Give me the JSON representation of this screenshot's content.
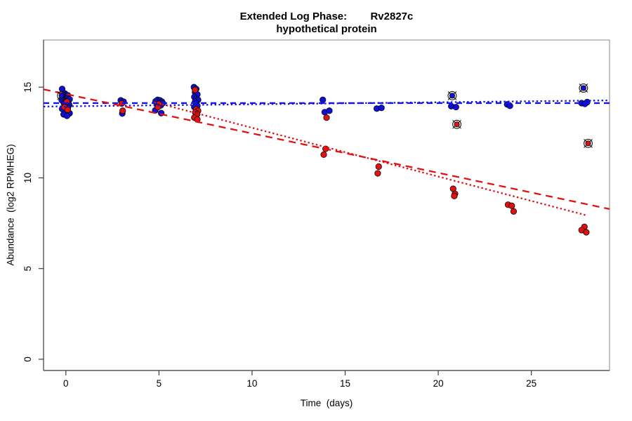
{
  "figure": {
    "title_line1": "Extended Log Phase:        Rv2827c",
    "title_line2": "hypothetical protein",
    "xlabel": "Time  (days)",
    "ylabel": "Abundance  (log2 RPMHEG)"
  },
  "chart_data": {
    "type": "scatter",
    "title": "Extended Log Phase: Rv2827c",
    "subtitle": "hypothetical protein",
    "xlabel": "Time (days)",
    "ylabel": "Abundance (log2 RPMHEG)",
    "xlim": [
      -1.2,
      29.2
    ],
    "ylim": [
      -0.62,
      17.6
    ],
    "x_ticks": [
      0,
      5,
      10,
      15,
      20,
      25
    ],
    "y_ticks": [
      0,
      5,
      10,
      15
    ],
    "grid": false,
    "legend": "none",
    "point_colors": {
      "blue": "#0f0fd9",
      "red": "#e01212"
    },
    "series": [
      {
        "name": "condition-blue-points",
        "type": "points",
        "color": "#0f0fd9",
        "points": [
          [
            -0.2,
            14.9
          ],
          [
            -0.05,
            14.65
          ],
          [
            0.1,
            14.55
          ],
          [
            -0.15,
            14.45
          ],
          [
            0.05,
            14.4
          ],
          [
            0.2,
            14.33
          ],
          [
            -0.22,
            14.28
          ],
          [
            0.0,
            14.22
          ],
          [
            0.12,
            14.15
          ],
          [
            -0.1,
            14.1
          ],
          [
            0.18,
            14.03
          ],
          [
            -0.04,
            13.95
          ],
          [
            0.1,
            13.86
          ],
          [
            -0.2,
            13.8
          ],
          [
            0.02,
            13.7
          ],
          [
            0.2,
            13.56
          ],
          [
            -0.12,
            13.5
          ],
          [
            0.06,
            13.42
          ],
          [
            2.95,
            14.27
          ],
          [
            3.1,
            14.2
          ],
          [
            3.03,
            13.55
          ],
          [
            4.82,
            14.22
          ],
          [
            4.93,
            14.3
          ],
          [
            5.05,
            14.27
          ],
          [
            5.16,
            14.2
          ],
          [
            5.0,
            14.12
          ],
          [
            4.88,
            14.05
          ],
          [
            5.1,
            14.0
          ],
          [
            5.2,
            14.12
          ],
          [
            4.8,
            13.72
          ],
          [
            5.12,
            13.57
          ],
          [
            6.88,
            15.0
          ],
          [
            7.0,
            14.9
          ],
          [
            6.94,
            14.72
          ],
          [
            7.06,
            14.6
          ],
          [
            6.9,
            14.46
          ],
          [
            7.0,
            14.36
          ],
          [
            7.1,
            14.3
          ],
          [
            6.94,
            14.2
          ],
          [
            7.0,
            14.1
          ],
          [
            7.06,
            13.97
          ],
          [
            6.9,
            13.9
          ],
          [
            13.8,
            14.3
          ],
          [
            13.9,
            13.62
          ],
          [
            14.15,
            13.7
          ],
          [
            16.7,
            13.82
          ],
          [
            16.95,
            13.86
          ],
          [
            20.7,
            13.95
          ],
          [
            20.95,
            13.9
          ],
          [
            23.7,
            14.05
          ],
          [
            23.85,
            13.97
          ],
          [
            27.7,
            14.12
          ],
          [
            28.0,
            14.18
          ],
          [
            27.88,
            14.08
          ]
        ]
      },
      {
        "name": "condition-red-points",
        "type": "points",
        "color": "#e01212",
        "points": [
          [
            0.05,
            14.2
          ],
          [
            -0.08,
            13.9
          ],
          [
            0.1,
            13.75
          ],
          [
            3.0,
            14.1
          ],
          [
            3.05,
            13.7
          ],
          [
            5.0,
            14.07
          ],
          [
            4.94,
            13.9
          ],
          [
            6.94,
            14.85
          ],
          [
            7.0,
            13.78
          ],
          [
            7.1,
            13.7
          ],
          [
            6.95,
            13.6
          ],
          [
            7.05,
            13.52
          ],
          [
            7.0,
            13.42
          ],
          [
            6.9,
            13.32
          ],
          [
            7.06,
            13.22
          ],
          [
            14.0,
            13.32
          ],
          [
            13.95,
            11.6
          ],
          [
            13.85,
            11.28
          ],
          [
            16.8,
            10.62
          ],
          [
            16.75,
            10.25
          ],
          [
            20.8,
            9.4
          ],
          [
            20.9,
            9.12
          ],
          [
            20.86,
            9.0
          ],
          [
            23.75,
            8.52
          ],
          [
            23.95,
            8.46
          ],
          [
            24.05,
            8.15
          ],
          [
            27.85,
            7.3
          ],
          [
            27.7,
            7.12
          ],
          [
            27.95,
            7.0
          ]
        ]
      },
      {
        "name": "outliers-circled-blue",
        "type": "circled-points",
        "color": "#0f0fd9",
        "points": [
          [
            -0.23,
            14.53
          ],
          [
            20.75,
            14.53
          ],
          [
            27.8,
            14.95
          ]
        ]
      },
      {
        "name": "outliers-circled-red",
        "type": "circled-points",
        "color": "#e01212",
        "points": [
          [
            21.0,
            12.95
          ],
          [
            28.05,
            11.9
          ]
        ]
      }
    ],
    "trend_lines": [
      {
        "name": "blue-longdash-fit",
        "color": "#1414e0",
        "dash": "8,6",
        "x": [
          -1.2,
          29.2
        ],
        "y": [
          14.12,
          14.12
        ]
      },
      {
        "name": "blue-dotted-fit",
        "color": "#1414e0",
        "dash": "2.4,3.4",
        "x": [
          -1.2,
          29.2
        ],
        "y": [
          13.93,
          14.27
        ]
      },
      {
        "name": "red-longdash-fit",
        "color": "#e01212",
        "dash": "10,7",
        "x": [
          -1.2,
          29.2
        ],
        "y": [
          14.88,
          8.28
        ]
      },
      {
        "name": "red-dotted-fit",
        "color": "#e01212",
        "dash": "2.4,3.4",
        "x": [
          4.75,
          27.9
        ],
        "y": [
          14.17,
          7.95
        ]
      }
    ]
  }
}
